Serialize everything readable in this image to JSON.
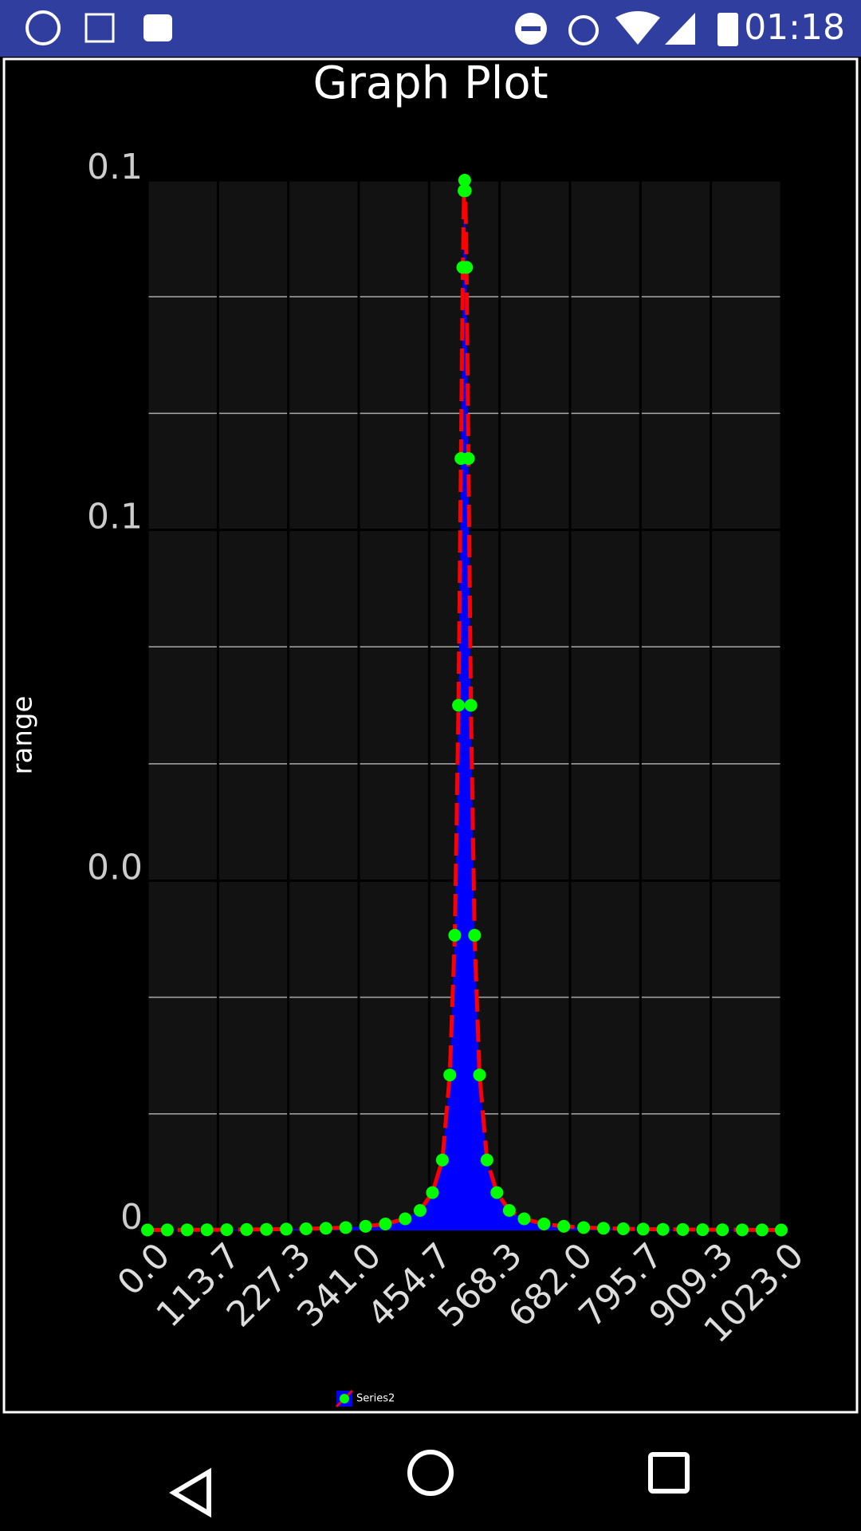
{
  "status_bar": {
    "time": "01:18"
  },
  "chart_data": {
    "type": "line",
    "title": "Graph Plot",
    "y_label": "range",
    "x": [
      0,
      32,
      64,
      96,
      128,
      160,
      192,
      224,
      256,
      288,
      320,
      352,
      384,
      416,
      440,
      460,
      476,
      488,
      496,
      502,
      506,
      509,
      511,
      512,
      513,
      515,
      518,
      522,
      528,
      536,
      548,
      564,
      584,
      608,
      640,
      672,
      704,
      736,
      768,
      800,
      832,
      864,
      896,
      928,
      960,
      992,
      1023
    ],
    "series": [
      {
        "name": "Series2",
        "color": "#ff0000",
        "fill_color": "#0000ff",
        "marker_color": "#00ff00",
        "dashed": true,
        "values": [
          3.8e-05,
          4.3e-05,
          5e-05,
          5.8e-05,
          6.8e-05,
          8.1e-05,
          9.8e-05,
          0.00012,
          0.00015,
          0.0002,
          0.00027,
          0.00039,
          0.00061,
          0.0011,
          0.0019,
          0.0036,
          0.0067,
          0.0148,
          0.0281,
          0.05,
          0.0735,
          0.0917,
          0.099,
          0.1,
          0.099,
          0.0917,
          0.0735,
          0.05,
          0.0281,
          0.0148,
          0.0067,
          0.0036,
          0.0019,
          0.0011,
          0.00061,
          0.00039,
          0.00027,
          0.0002,
          0.00015,
          0.00012,
          9.8e-05,
          8.1e-05,
          6.8e-05,
          5.8e-05,
          5e-05,
          4.3e-05,
          3.8e-05
        ]
      }
    ],
    "xlim": [
      0,
      1023
    ],
    "xticks": [
      {
        "value": 0,
        "label": "0.0"
      },
      113.7,
      227.3,
      {
        "value": 341,
        "label": "341.0"
      },
      454.7,
      568.3,
      {
        "value": 682,
        "label": "682.0"
      },
      795.7,
      909.3,
      {
        "value": 1023,
        "label": "1023.0"
      }
    ],
    "ylim": [
      0,
      0.1
    ],
    "yticks": [
      0,
      {
        "value": 0.0333,
        "label": "0.0"
      },
      {
        "value": 0.0667,
        "label": "0.1"
      },
      0.1
    ],
    "grid": true,
    "legend": "bottom"
  }
}
